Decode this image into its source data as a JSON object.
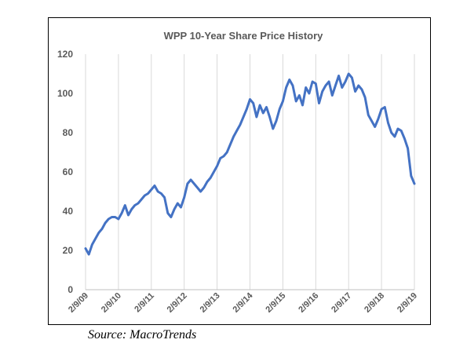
{
  "chart_data": {
    "type": "line",
    "title": "WPP 10-Year Share Price History",
    "xlabel": "",
    "ylabel": "",
    "ylim": [
      0,
      120
    ],
    "yticks": [
      0,
      20,
      40,
      60,
      80,
      100,
      120
    ],
    "xticks": [
      "2/9/09",
      "2/9/10",
      "2/9/11",
      "2/9/12",
      "2/9/13",
      "2/9/14",
      "2/9/15",
      "2/9/16",
      "2/9/17",
      "2/9/18",
      "2/9/19"
    ],
    "grid": "vertical",
    "legend": "none",
    "line_color": "#4472C4",
    "series": [
      {
        "x": [
          2009.0,
          2009.1,
          2009.2,
          2009.3,
          2009.4,
          2009.5,
          2009.6,
          2009.7,
          2009.8,
          2009.9,
          2010.0,
          2010.1,
          2010.2,
          2010.3,
          2010.4,
          2010.5,
          2010.6,
          2010.7,
          2010.8,
          2010.9,
          2011.0,
          2011.1,
          2011.2,
          2011.3,
          2011.4,
          2011.5,
          2011.6,
          2011.7,
          2011.8,
          2011.9,
          2012.0,
          2012.1,
          2012.2,
          2012.3,
          2012.4,
          2012.5,
          2012.6,
          2012.7,
          2012.8,
          2012.9,
          2013.0,
          2013.1,
          2013.2,
          2013.3,
          2013.4,
          2013.5,
          2013.6,
          2013.7,
          2013.8,
          2013.9,
          2014.0,
          2014.1,
          2014.2,
          2014.3,
          2014.4,
          2014.5,
          2014.6,
          2014.7,
          2014.8,
          2014.9,
          2015.0,
          2015.1,
          2015.2,
          2015.3,
          2015.4,
          2015.5,
          2015.6,
          2015.7,
          2015.8,
          2015.9,
          2016.0,
          2016.1,
          2016.2,
          2016.3,
          2016.4,
          2016.5,
          2016.6,
          2016.7,
          2016.8,
          2016.9,
          2017.0,
          2017.1,
          2017.2,
          2017.3,
          2017.4,
          2017.5,
          2017.6,
          2017.7,
          2017.8,
          2017.9,
          2018.0,
          2018.1,
          2018.2,
          2018.3,
          2018.4,
          2018.5,
          2018.6,
          2018.7,
          2018.8,
          2018.9,
          2019.0
        ],
        "values": [
          21,
          18,
          23,
          26,
          29,
          31,
          34,
          36,
          37,
          37,
          36,
          39,
          43,
          38,
          41,
          43,
          44,
          46,
          48,
          49,
          51,
          53,
          50,
          49,
          47,
          39,
          37,
          41,
          44,
          42,
          47,
          54,
          56,
          54,
          52,
          50,
          52,
          55,
          57,
          60,
          63,
          67,
          68,
          70,
          74,
          78,
          81,
          84,
          88,
          92,
          97,
          95,
          88,
          94,
          90,
          93,
          88,
          82,
          86,
          92,
          96,
          103,
          107,
          104,
          96,
          99,
          94,
          103,
          100,
          106,
          105,
          95,
          101,
          104,
          106,
          99,
          104,
          109,
          103,
          106,
          110,
          108,
          101,
          104,
          102,
          98,
          89,
          86,
          83,
          87,
          92,
          93,
          85,
          80,
          78,
          82,
          81,
          77,
          72,
          58,
          54
        ]
      }
    ]
  },
  "source_note": "Source: MacroTrends"
}
